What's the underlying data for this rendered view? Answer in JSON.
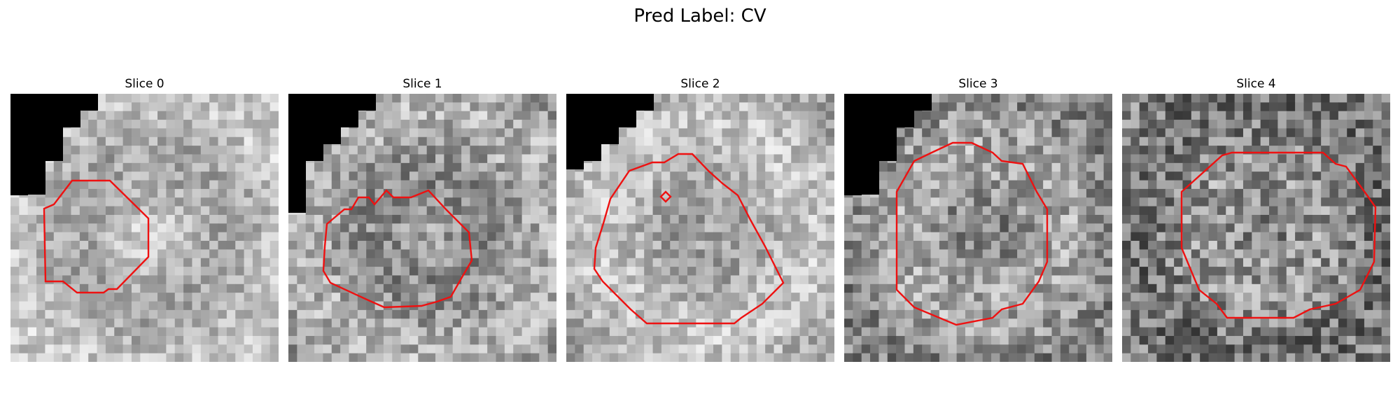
{
  "figure": {
    "title": "Pred Label: CV"
  },
  "panels": [
    {
      "title": "Slice 0",
      "seed": 11,
      "brightness": 0.72,
      "contrast": 0.16
    },
    {
      "title": "Slice 1",
      "seed": 23,
      "brightness": 0.62,
      "contrast": 0.2
    },
    {
      "title": "Slice 2",
      "seed": 37,
      "brightness": 0.7,
      "contrast": 0.17
    },
    {
      "title": "Slice 3",
      "seed": 51,
      "brightness": 0.58,
      "contrast": 0.22
    },
    {
      "title": "Slice 4",
      "seed": 67,
      "brightness": 0.52,
      "contrast": 0.25
    }
  ],
  "style": {
    "contour_color": "#ee1111",
    "mask_color": "#000000"
  }
}
